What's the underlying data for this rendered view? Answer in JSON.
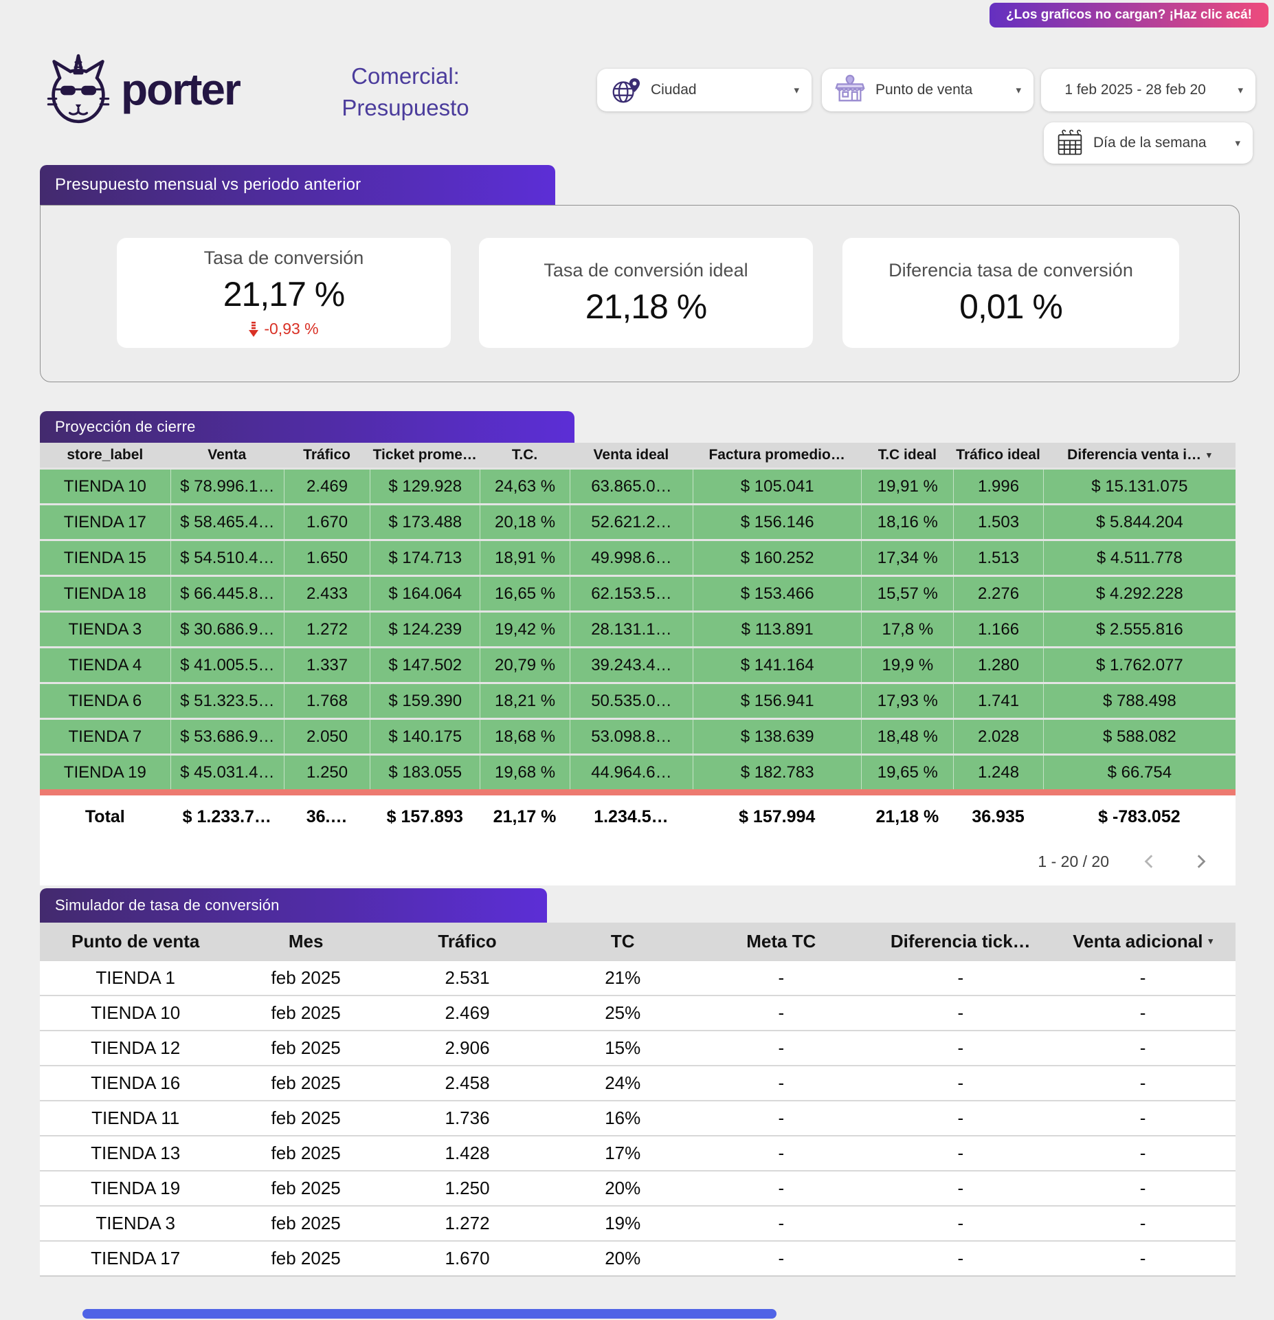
{
  "badge": {
    "label": "¿Los graficos no cargan? ¡Haz clic acá!"
  },
  "brand": {
    "wordmark": "porter"
  },
  "title": {
    "line1": "Comercial:",
    "line2": "Presupuesto"
  },
  "filters": {
    "ciudad": "Ciudad",
    "punto_de_venta": "Punto de venta",
    "date_range": "1 feb 2025 - 28 feb 20",
    "dia_semana": "Día de la semana"
  },
  "kpi_section": {
    "header": "Presupuesto mensual vs periodo anterior",
    "cards": [
      {
        "title": "Tasa de conversión",
        "value": "21,17 %",
        "delta": "-0,93 %"
      },
      {
        "title": "Tasa de conversión ideal",
        "value": "21,18 %"
      },
      {
        "title": "Diferencia tasa de conversión",
        "value": "0,01 %"
      }
    ]
  },
  "proyeccion": {
    "header": "Proyección de cierre",
    "columns": [
      {
        "label": "store_label"
      },
      {
        "label": "Venta"
      },
      {
        "label": "Tráfico"
      },
      {
        "label": "Ticket prome…"
      },
      {
        "label": "T.C."
      },
      {
        "label": "Venta ideal"
      },
      {
        "label": "Factura promedio…"
      },
      {
        "label": "T.C ideal"
      },
      {
        "label": "Tráfico ideal"
      },
      {
        "label": "Diferencia venta i…",
        "sort": true
      }
    ],
    "rows": [
      [
        "TIENDA 10",
        "$ 78.996.1…",
        "2.469",
        "$ 129.928",
        "24,63 %",
        "63.865.0…",
        "$ 105.041",
        "19,91 %",
        "1.996",
        "$ 15.131.075"
      ],
      [
        "TIENDA 17",
        "$ 58.465.4…",
        "1.670",
        "$ 173.488",
        "20,18 %",
        "52.621.2…",
        "$ 156.146",
        "18,16 %",
        "1.503",
        "$ 5.844.204"
      ],
      [
        "TIENDA 15",
        "$ 54.510.4…",
        "1.650",
        "$ 174.713",
        "18,91 %",
        "49.998.6…",
        "$ 160.252",
        "17,34 %",
        "1.513",
        "$ 4.511.778"
      ],
      [
        "TIENDA 18",
        "$ 66.445.8…",
        "2.433",
        "$ 164.064",
        "16,65 %",
        "62.153.5…",
        "$ 153.466",
        "15,57 %",
        "2.276",
        "$ 4.292.228"
      ],
      [
        "TIENDA 3",
        "$ 30.686.9…",
        "1.272",
        "$ 124.239",
        "19,42 %",
        "28.131.1…",
        "$ 113.891",
        "17,8 %",
        "1.166",
        "$ 2.555.816"
      ],
      [
        "TIENDA 4",
        "$ 41.005.5…",
        "1.337",
        "$ 147.502",
        "20,79 %",
        "39.243.4…",
        "$ 141.164",
        "19,9 %",
        "1.280",
        "$ 1.762.077"
      ],
      [
        "TIENDA 6",
        "$ 51.323.5…",
        "1.768",
        "$ 159.390",
        "18,21 %",
        "50.535.0…",
        "$ 156.941",
        "17,93 %",
        "1.741",
        "$ 788.498"
      ],
      [
        "TIENDA 7",
        "$ 53.686.9…",
        "2.050",
        "$ 140.175",
        "18,68 %",
        "53.098.8…",
        "$ 138.639",
        "18,48 %",
        "2.028",
        "$ 588.082"
      ],
      [
        "TIENDA 19",
        "$ 45.031.4…",
        "1.250",
        "$ 183.055",
        "19,68 %",
        "44.964.6…",
        "$ 182.783",
        "19,65 %",
        "1.248",
        "$ 66.754"
      ]
    ],
    "total": [
      "Total",
      "$ 1.233.7…",
      "36.…",
      "$ 157.893",
      "21,17 %",
      "1.234.5…",
      "$ 157.994",
      "21,18 %",
      "36.935",
      "$ -783.052"
    ],
    "pagination": {
      "label": "1 - 20 / 20"
    }
  },
  "simulador": {
    "header": "Simulador de tasa de conversión",
    "columns": [
      {
        "label": "Punto de venta"
      },
      {
        "label": "Mes"
      },
      {
        "label": "Tráfico"
      },
      {
        "label": "TC"
      },
      {
        "label": "Meta TC"
      },
      {
        "label": "Diferencia tick…"
      },
      {
        "label": "Venta adicional",
        "sort": true
      }
    ],
    "rows": [
      [
        "TIENDA 1",
        "feb 2025",
        "2.531",
        "21%",
        "-",
        "-",
        "-"
      ],
      [
        "TIENDA 10",
        "feb 2025",
        "2.469",
        "25%",
        "-",
        "-",
        "-"
      ],
      [
        "TIENDA 12",
        "feb 2025",
        "2.906",
        "15%",
        "-",
        "-",
        "-"
      ],
      [
        "TIENDA 16",
        "feb 2025",
        "2.458",
        "24%",
        "-",
        "-",
        "-"
      ],
      [
        "TIENDA 11",
        "feb 2025",
        "1.736",
        "16%",
        "-",
        "-",
        "-"
      ],
      [
        "TIENDA 13",
        "feb 2025",
        "1.428",
        "17%",
        "-",
        "-",
        "-"
      ],
      [
        "TIENDA 19",
        "feb 2025",
        "1.250",
        "20%",
        "-",
        "-",
        "-"
      ],
      [
        "TIENDA 3",
        "feb 2025",
        "1.272",
        "19%",
        "-",
        "-",
        "-"
      ],
      [
        "TIENDA 17",
        "feb 2025",
        "1.670",
        "20%",
        "-",
        "-",
        "-"
      ]
    ]
  },
  "colors": {
    "header-grad-left": "#432a6e",
    "header-grad-right": "#5c2ed6",
    "badge-grad-left": "#6430c0",
    "badge-grad-right": "#ee4b7c",
    "row-green": "#7cc282",
    "divider-red": "#ed7a70",
    "delta-red": "#d93025",
    "scrollbar-blue": "#4f63e6",
    "title-purple": "#4b3c9c",
    "logo-ink": "#241643",
    "header-gray": "#d9d9d9"
  }
}
